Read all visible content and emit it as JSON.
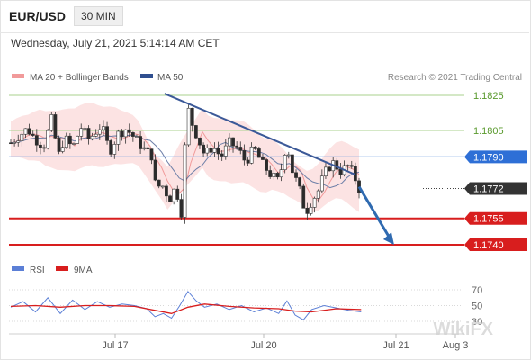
{
  "header": {
    "symbol": "EUR/USD",
    "timeframe": "30 MIN",
    "timestamp": "Wednesday, July 21, 2021 5:14:14 AM CET"
  },
  "legend": {
    "bollinger": {
      "label": "MA 20 + Bollinger Bands",
      "color": "#f19a9a"
    },
    "ma50": {
      "label": "MA 50",
      "color": "#2f4f8f"
    },
    "rsi": {
      "label": "RSI",
      "color": "#5b7fd6"
    },
    "nine_ma": {
      "label": "9MA",
      "color": "#d81e1e"
    }
  },
  "credit": "Research © 2021 Trading Central",
  "watermark": "WikiFX",
  "chart_data": [
    {
      "type": "candlestick",
      "x_ticks": [
        "Jul 17",
        "Jul 20",
        "Jul 21",
        "Aug 3"
      ],
      "levels": [
        {
          "value": 1.1825,
          "label": "1.1825",
          "kind": "resistance-2",
          "color": "#7ab648"
        },
        {
          "value": 1.1805,
          "label": "1.1805",
          "kind": "resistance-1",
          "color": "#7ab648"
        },
        {
          "value": 1.179,
          "label": "1.1790",
          "kind": "pivot",
          "color": "#2e6fd6"
        },
        {
          "value": 1.1772,
          "label": "1.1772",
          "kind": "last-price",
          "color": "#333333"
        },
        {
          "value": 1.1755,
          "label": "1.1755",
          "kind": "support-1",
          "color": "#d81e1e"
        },
        {
          "value": 1.174,
          "label": "1.1740",
          "kind": "support-2",
          "color": "#d81e1e"
        }
      ],
      "trendline": {
        "from": [
          0.373,
          1.1826
        ],
        "to": [
          0.835,
          1.178
        ]
      },
      "forecast_arrow": {
        "from": [
          0.845,
          1.1773
        ],
        "to": [
          0.93,
          1.174
        ]
      },
      "price_path": [
        [
          0.0,
          1.1798
        ],
        [
          0.02,
          1.1802
        ],
        [
          0.04,
          1.1806
        ],
        [
          0.06,
          1.18
        ],
        [
          0.08,
          1.1796
        ],
        [
          0.1,
          1.1812
        ],
        [
          0.115,
          1.179
        ],
        [
          0.13,
          1.1801
        ],
        [
          0.15,
          1.1795
        ],
        [
          0.17,
          1.1807
        ],
        [
          0.19,
          1.18
        ],
        [
          0.22,
          1.1808
        ],
        [
          0.24,
          1.1793
        ],
        [
          0.26,
          1.1803
        ],
        [
          0.28,
          1.1806
        ],
        [
          0.3,
          1.1801
        ],
        [
          0.32,
          1.1795
        ],
        [
          0.345,
          1.179
        ],
        [
          0.352,
          1.1771
        ],
        [
          0.365,
          1.1775
        ],
        [
          0.385,
          1.1766
        ],
        [
          0.4,
          1.1773
        ],
        [
          0.415,
          1.1757
        ],
        [
          0.423,
          1.1798
        ],
        [
          0.427,
          1.1822
        ],
        [
          0.435,
          1.1812
        ],
        [
          0.45,
          1.1803
        ],
        [
          0.47,
          1.1791
        ],
        [
          0.49,
          1.1796
        ],
        [
          0.51,
          1.179
        ],
        [
          0.53,
          1.1798
        ],
        [
          0.55,
          1.1795
        ],
        [
          0.57,
          1.1787
        ],
        [
          0.59,
          1.1795
        ],
        [
          0.61,
          1.1786
        ],
        [
          0.63,
          1.178
        ],
        [
          0.65,
          1.1776
        ],
        [
          0.67,
          1.1799
        ],
        [
          0.68,
          1.1784
        ],
        [
          0.7,
          1.1772
        ],
        [
          0.715,
          1.1758
        ],
        [
          0.73,
          1.1765
        ],
        [
          0.745,
          1.177
        ],
        [
          0.76,
          1.178
        ],
        [
          0.78,
          1.1787
        ],
        [
          0.8,
          1.1782
        ],
        [
          0.82,
          1.1785
        ],
        [
          0.835,
          1.1778
        ],
        [
          0.845,
          1.1772
        ]
      ]
    },
    {
      "type": "line",
      "name": "RSI",
      "yticks": [
        "70",
        "50",
        "30"
      ],
      "ylim": [
        20,
        80
      ],
      "series": [
        {
          "name": "RSI",
          "color": "#5b7fd6",
          "x": [
            0.0,
            0.03,
            0.06,
            0.09,
            0.12,
            0.15,
            0.18,
            0.21,
            0.24,
            0.27,
            0.3,
            0.33,
            0.35,
            0.37,
            0.39,
            0.41,
            0.43,
            0.45,
            0.47,
            0.5,
            0.53,
            0.56,
            0.59,
            0.62,
            0.65,
            0.67,
            0.69,
            0.71,
            0.73,
            0.76,
            0.79,
            0.82,
            0.85
          ],
          "values": [
            48,
            55,
            42,
            60,
            40,
            57,
            45,
            55,
            48,
            52,
            50,
            46,
            36,
            40,
            34,
            50,
            68,
            56,
            48,
            52,
            45,
            50,
            42,
            47,
            40,
            56,
            38,
            32,
            45,
            50,
            47,
            44,
            42
          ]
        },
        {
          "name": "9MA",
          "color": "#d81e1e",
          "x": [
            0.0,
            0.06,
            0.12,
            0.18,
            0.24,
            0.3,
            0.35,
            0.39,
            0.43,
            0.47,
            0.53,
            0.59,
            0.65,
            0.69,
            0.73,
            0.79,
            0.85
          ],
          "values": [
            49,
            50,
            48,
            50,
            50,
            49,
            44,
            40,
            48,
            52,
            49,
            47,
            46,
            43,
            42,
            46,
            45
          ]
        }
      ]
    }
  ]
}
